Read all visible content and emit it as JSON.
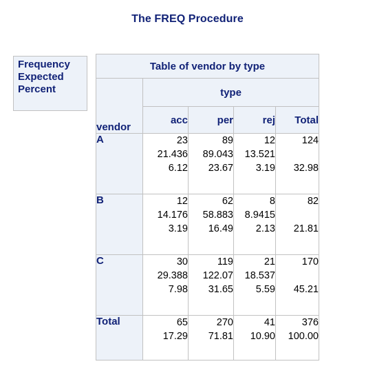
{
  "page_title": "The FREQ Procedure",
  "legend": {
    "lines": [
      "Frequency",
      "Expected",
      "Percent"
    ]
  },
  "table": {
    "title": "Table of vendor by type",
    "col_var": "type",
    "row_var": "vendor",
    "columns": [
      "acc",
      "per",
      "rej",
      "Total"
    ],
    "rows": [
      {
        "label": "A",
        "cells": [
          {
            "freq": "23",
            "expected": "21.436",
            "percent": "6.12"
          },
          {
            "freq": "89",
            "expected": "89.043",
            "percent": "23.67"
          },
          {
            "freq": "12",
            "expected": "13.521",
            "percent": "3.19"
          }
        ],
        "total": {
          "freq": "124",
          "percent": "32.98"
        }
      },
      {
        "label": "B",
        "cells": [
          {
            "freq": "12",
            "expected": "14.176",
            "percent": "3.19"
          },
          {
            "freq": "62",
            "expected": "58.883",
            "percent": "16.49"
          },
          {
            "freq": "8",
            "expected": "8.9415",
            "percent": "2.13"
          }
        ],
        "total": {
          "freq": "82",
          "percent": "21.81"
        }
      },
      {
        "label": "C",
        "cells": [
          {
            "freq": "30",
            "expected": "29.388",
            "percent": "7.98"
          },
          {
            "freq": "119",
            "expected": "122.07",
            "percent": "31.65"
          },
          {
            "freq": "21",
            "expected": "18.537",
            "percent": "5.59"
          }
        ],
        "total": {
          "freq": "170",
          "percent": "45.21"
        }
      }
    ],
    "total_row": {
      "label": "Total",
      "cells": [
        {
          "freq": "65",
          "percent": "17.29"
        },
        {
          "freq": "270",
          "percent": "71.81"
        },
        {
          "freq": "41",
          "percent": "10.90"
        }
      ],
      "total": {
        "freq": "376",
        "percent": "100.00"
      }
    }
  },
  "colors": {
    "header_bg": "#edf2f9",
    "header_text": "#112277",
    "border": "#c1c1c1"
  }
}
